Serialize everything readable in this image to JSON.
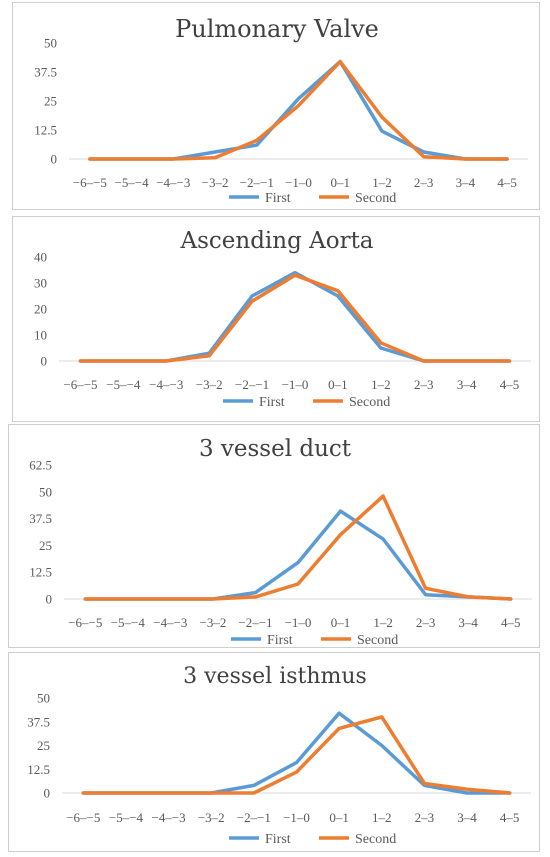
{
  "colors": {
    "first": "#5b9bd5",
    "second": "#ed7d31",
    "grid": "#d9d9d9",
    "text": "#595959",
    "title": "#404040"
  },
  "chart_data": [
    {
      "type": "line",
      "title": "Pulmonary Valve",
      "categories": [
        "−6–−5",
        "−5–−4",
        "−4–−3",
        "−3–2",
        "−2–−1",
        "−1–0",
        "0–1",
        "1–2",
        "2–3",
        "3–4",
        "4–5"
      ],
      "yticks": [
        "0",
        "12.5",
        "25",
        "37.5",
        "50"
      ],
      "ylim": [
        0,
        50
      ],
      "grid": false,
      "legend": "bottom",
      "series": [
        {
          "name": "First",
          "values": [
            0,
            0,
            0,
            3,
            6,
            26,
            42,
            12,
            3,
            0,
            0
          ]
        },
        {
          "name": "Second",
          "values": [
            0,
            0,
            0,
            0.5,
            8,
            23,
            42,
            18,
            1,
            0,
            0
          ]
        }
      ]
    },
    {
      "type": "line",
      "title": "Ascending Aorta",
      "categories": [
        "−6–−5",
        "−5–−4",
        "−4–−3",
        "−3–2",
        "−2–−1",
        "−1–0",
        "0–1",
        "1–2",
        "2–3",
        "3–4",
        "4–5"
      ],
      "yticks": [
        "0",
        "10",
        "20",
        "30",
        "40"
      ],
      "ylim": [
        0,
        40
      ],
      "grid": false,
      "legend": "bottom",
      "series": [
        {
          "name": "First",
          "values": [
            0,
            0,
            0,
            3,
            25,
            34,
            25,
            5,
            0,
            0,
            0
          ]
        },
        {
          "name": "Second",
          "values": [
            0,
            0,
            0,
            2,
            23,
            33,
            27,
            7,
            0,
            0,
            0
          ]
        }
      ]
    },
    {
      "type": "line",
      "title": "3 vessel duct",
      "categories": [
        "−6–−5",
        "−5–−4",
        "−4–−3",
        "−3–2",
        "−2–−1",
        "−1–0",
        "0–1",
        "1–2",
        "2–3",
        "3–4",
        "4–5"
      ],
      "yticks": [
        "0",
        "12.5",
        "25",
        "37.5",
        "50",
        "62.5"
      ],
      "ylim": [
        0,
        62.5
      ],
      "grid": false,
      "legend": "bottom",
      "series": [
        {
          "name": "First",
          "values": [
            0,
            0,
            0,
            0,
            3,
            17,
            41,
            28,
            2,
            1,
            0
          ]
        },
        {
          "name": "Second",
          "values": [
            0,
            0,
            0,
            0,
            1,
            7,
            30,
            48,
            5,
            1,
            0
          ]
        }
      ]
    },
    {
      "type": "line",
      "title": "3 vessel isthmus",
      "categories": [
        "−6–−5",
        "−5–−4",
        "−4–−3",
        "−3–2",
        "−2–−1",
        "−1–0",
        "0–1",
        "1–2",
        "2–3",
        "3–4",
        "4–5"
      ],
      "yticks": [
        "0",
        "12.5",
        "25",
        "37.5",
        "50"
      ],
      "ylim": [
        0,
        50
      ],
      "grid": false,
      "legend": "bottom",
      "series": [
        {
          "name": "First",
          "values": [
            0,
            0,
            0,
            0,
            4,
            16,
            42,
            25,
            4,
            0,
            0
          ]
        },
        {
          "name": "Second",
          "values": [
            0,
            0,
            0,
            0,
            0,
            11,
            34,
            40,
            5,
            2,
            0
          ]
        }
      ]
    }
  ]
}
